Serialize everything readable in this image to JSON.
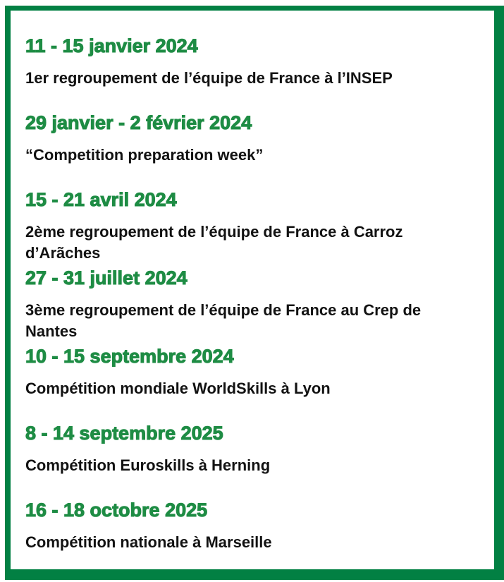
{
  "colors": {
    "border_green": "#028043",
    "heading_green": "#1e8c44",
    "body_text": "#121212"
  },
  "timeline": {
    "items": [
      {
        "date": "11 - 15 janvier 2024",
        "description": "1er regroupement de l’équipe de France à l’INSEP"
      },
      {
        "date": "29 janvier - 2 février 2024",
        "description": "“Competition preparation week”"
      },
      {
        "date": "15 - 21 avril 2024",
        "description": "2ème regroupement de l’équipe de France à Carroz d’Arãches"
      },
      {
        "date": "27 - 31 juillet 2024",
        "description": "3ème regroupement de l’équipe de France au Crep de Nantes"
      },
      {
        "date": "10 - 15 septembre 2024",
        "description": "Compétition mondiale WorldSkills à Lyon"
      },
      {
        "date": "8 - 14 septembre 2025",
        "description": "Compétition Euroskills à Herning"
      },
      {
        "date": "16 - 18 octobre 2025",
        "description": "Compétition nationale à Marseille"
      }
    ]
  }
}
